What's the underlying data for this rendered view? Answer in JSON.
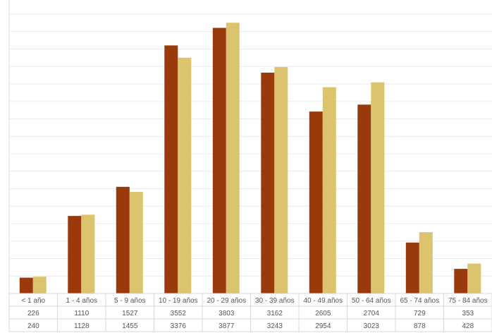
{
  "chart_data": {
    "type": "bar",
    "title": "",
    "xlabel": "",
    "ylabel": "",
    "categories": [
      "< 1 año",
      "1 - 4 años",
      "5 - 9 años",
      "10 - 19 años",
      "20 - 29 años",
      "30 - 39 años",
      "40 - 49 años",
      "50 - 64 años",
      "65 - 74 años",
      "75 - 84 años"
    ],
    "series": [
      {
        "color": "#9a3a0c",
        "values": [
          226,
          1110,
          1527,
          3552,
          3803,
          3162,
          2605,
          2704,
          729,
          353
        ]
      },
      {
        "color": "#dcc46e",
        "values": [
          240,
          1128,
          1455,
          3376,
          3877,
          3243,
          2954,
          3023,
          878,
          428
        ]
      }
    ],
    "ylim": [
      0,
      4000
    ],
    "grid": true,
    "legend": "none",
    "data_table": true
  }
}
